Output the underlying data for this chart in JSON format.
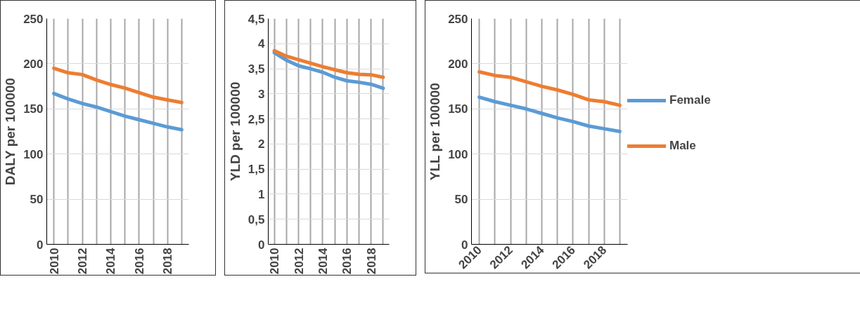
{
  "chart_data": [
    {
      "type": "line",
      "ylabel": "DALY per 100000",
      "x": [
        2010,
        2011,
        2012,
        2013,
        2014,
        2015,
        2016,
        2017,
        2018,
        2019
      ],
      "xlim": [
        2009.5,
        2019.5
      ],
      "xticks": [
        2010,
        {
          "value": 2011,
          "label": null
        },
        2012,
        {
          "value": 2013,
          "label": null
        },
        2014,
        {
          "value": 2015,
          "label": null
        },
        2016,
        {
          "value": 2017,
          "label": null
        },
        2018,
        {
          "value": 2019,
          "label": null
        }
      ],
      "ylim": [
        0,
        250
      ],
      "yticks": [
        0,
        50,
        100,
        150,
        200,
        250
      ],
      "grid": true,
      "legend": false,
      "series": [
        {
          "color": "#5b9bd5",
          "values": [
            167,
            161,
            156,
            152,
            147,
            142,
            138,
            134,
            130,
            127
          ]
        },
        {
          "color": "#ed7d31",
          "values": [
            195,
            190,
            188,
            182,
            177,
            173,
            168,
            163,
            160,
            157
          ]
        }
      ]
    },
    {
      "type": "line",
      "ylabel": "YLD per 100000",
      "x": [
        2010,
        2011,
        2012,
        2013,
        2014,
        2015,
        2016,
        2017,
        2018,
        2019
      ],
      "xlim": [
        2009.5,
        2019.5
      ],
      "xticks": [
        2010,
        {
          "value": 2011,
          "label": null
        },
        2012,
        {
          "value": 2013,
          "label": null
        },
        2014,
        {
          "value": 2015,
          "label": null
        },
        2016,
        {
          "value": 2017,
          "label": null
        },
        2018,
        {
          "value": 2019,
          "label": null
        }
      ],
      "ylim": [
        0,
        4.5
      ],
      "yticks": [
        0,
        {
          "value": 0.5,
          "label": "0,5"
        },
        1,
        {
          "value": 1.5,
          "label": "1,5"
        },
        2,
        {
          "value": 2.5,
          "label": "2,5"
        },
        3,
        {
          "value": 3.5,
          "label": "3,5"
        },
        4,
        {
          "value": 4.5,
          "label": "4,5"
        }
      ],
      "grid": true,
      "legend": false,
      "series": [
        {
          "color": "#5b9bd5",
          "values": [
            3.82,
            3.67,
            3.56,
            3.5,
            3.43,
            3.33,
            3.26,
            3.23,
            3.19,
            3.11
          ]
        },
        {
          "color": "#ed7d31",
          "values": [
            3.86,
            3.75,
            3.68,
            3.61,
            3.54,
            3.48,
            3.42,
            3.39,
            3.38,
            3.33
          ]
        }
      ]
    },
    {
      "type": "line",
      "ylabel": "YLL per 100000",
      "x": [
        2010,
        2011,
        2012,
        2013,
        2014,
        2015,
        2016,
        2017,
        2018,
        2019
      ],
      "xlim": [
        2009.5,
        2019.5
      ],
      "xticks": [
        2010,
        {
          "value": 2011,
          "label": null
        },
        2012,
        {
          "value": 2013,
          "label": null
        },
        2014,
        {
          "value": 2015,
          "label": null
        },
        2016,
        {
          "value": 2017,
          "label": null
        },
        2018,
        {
          "value": 2019,
          "label": null
        }
      ],
      "ylim": [
        0,
        250
      ],
      "yticks": [
        0,
        50,
        100,
        150,
        200,
        250
      ],
      "grid": true,
      "legend": "right",
      "series": [
        {
          "name": "Female",
          "color": "#5b9bd5",
          "values": [
            163,
            158,
            154,
            150,
            145,
            140,
            136,
            131,
            128,
            125
          ]
        },
        {
          "name": "Male",
          "color": "#ed7d31",
          "values": [
            191,
            187,
            185,
            180,
            175,
            171,
            166,
            160,
            158,
            154
          ]
        }
      ]
    }
  ]
}
